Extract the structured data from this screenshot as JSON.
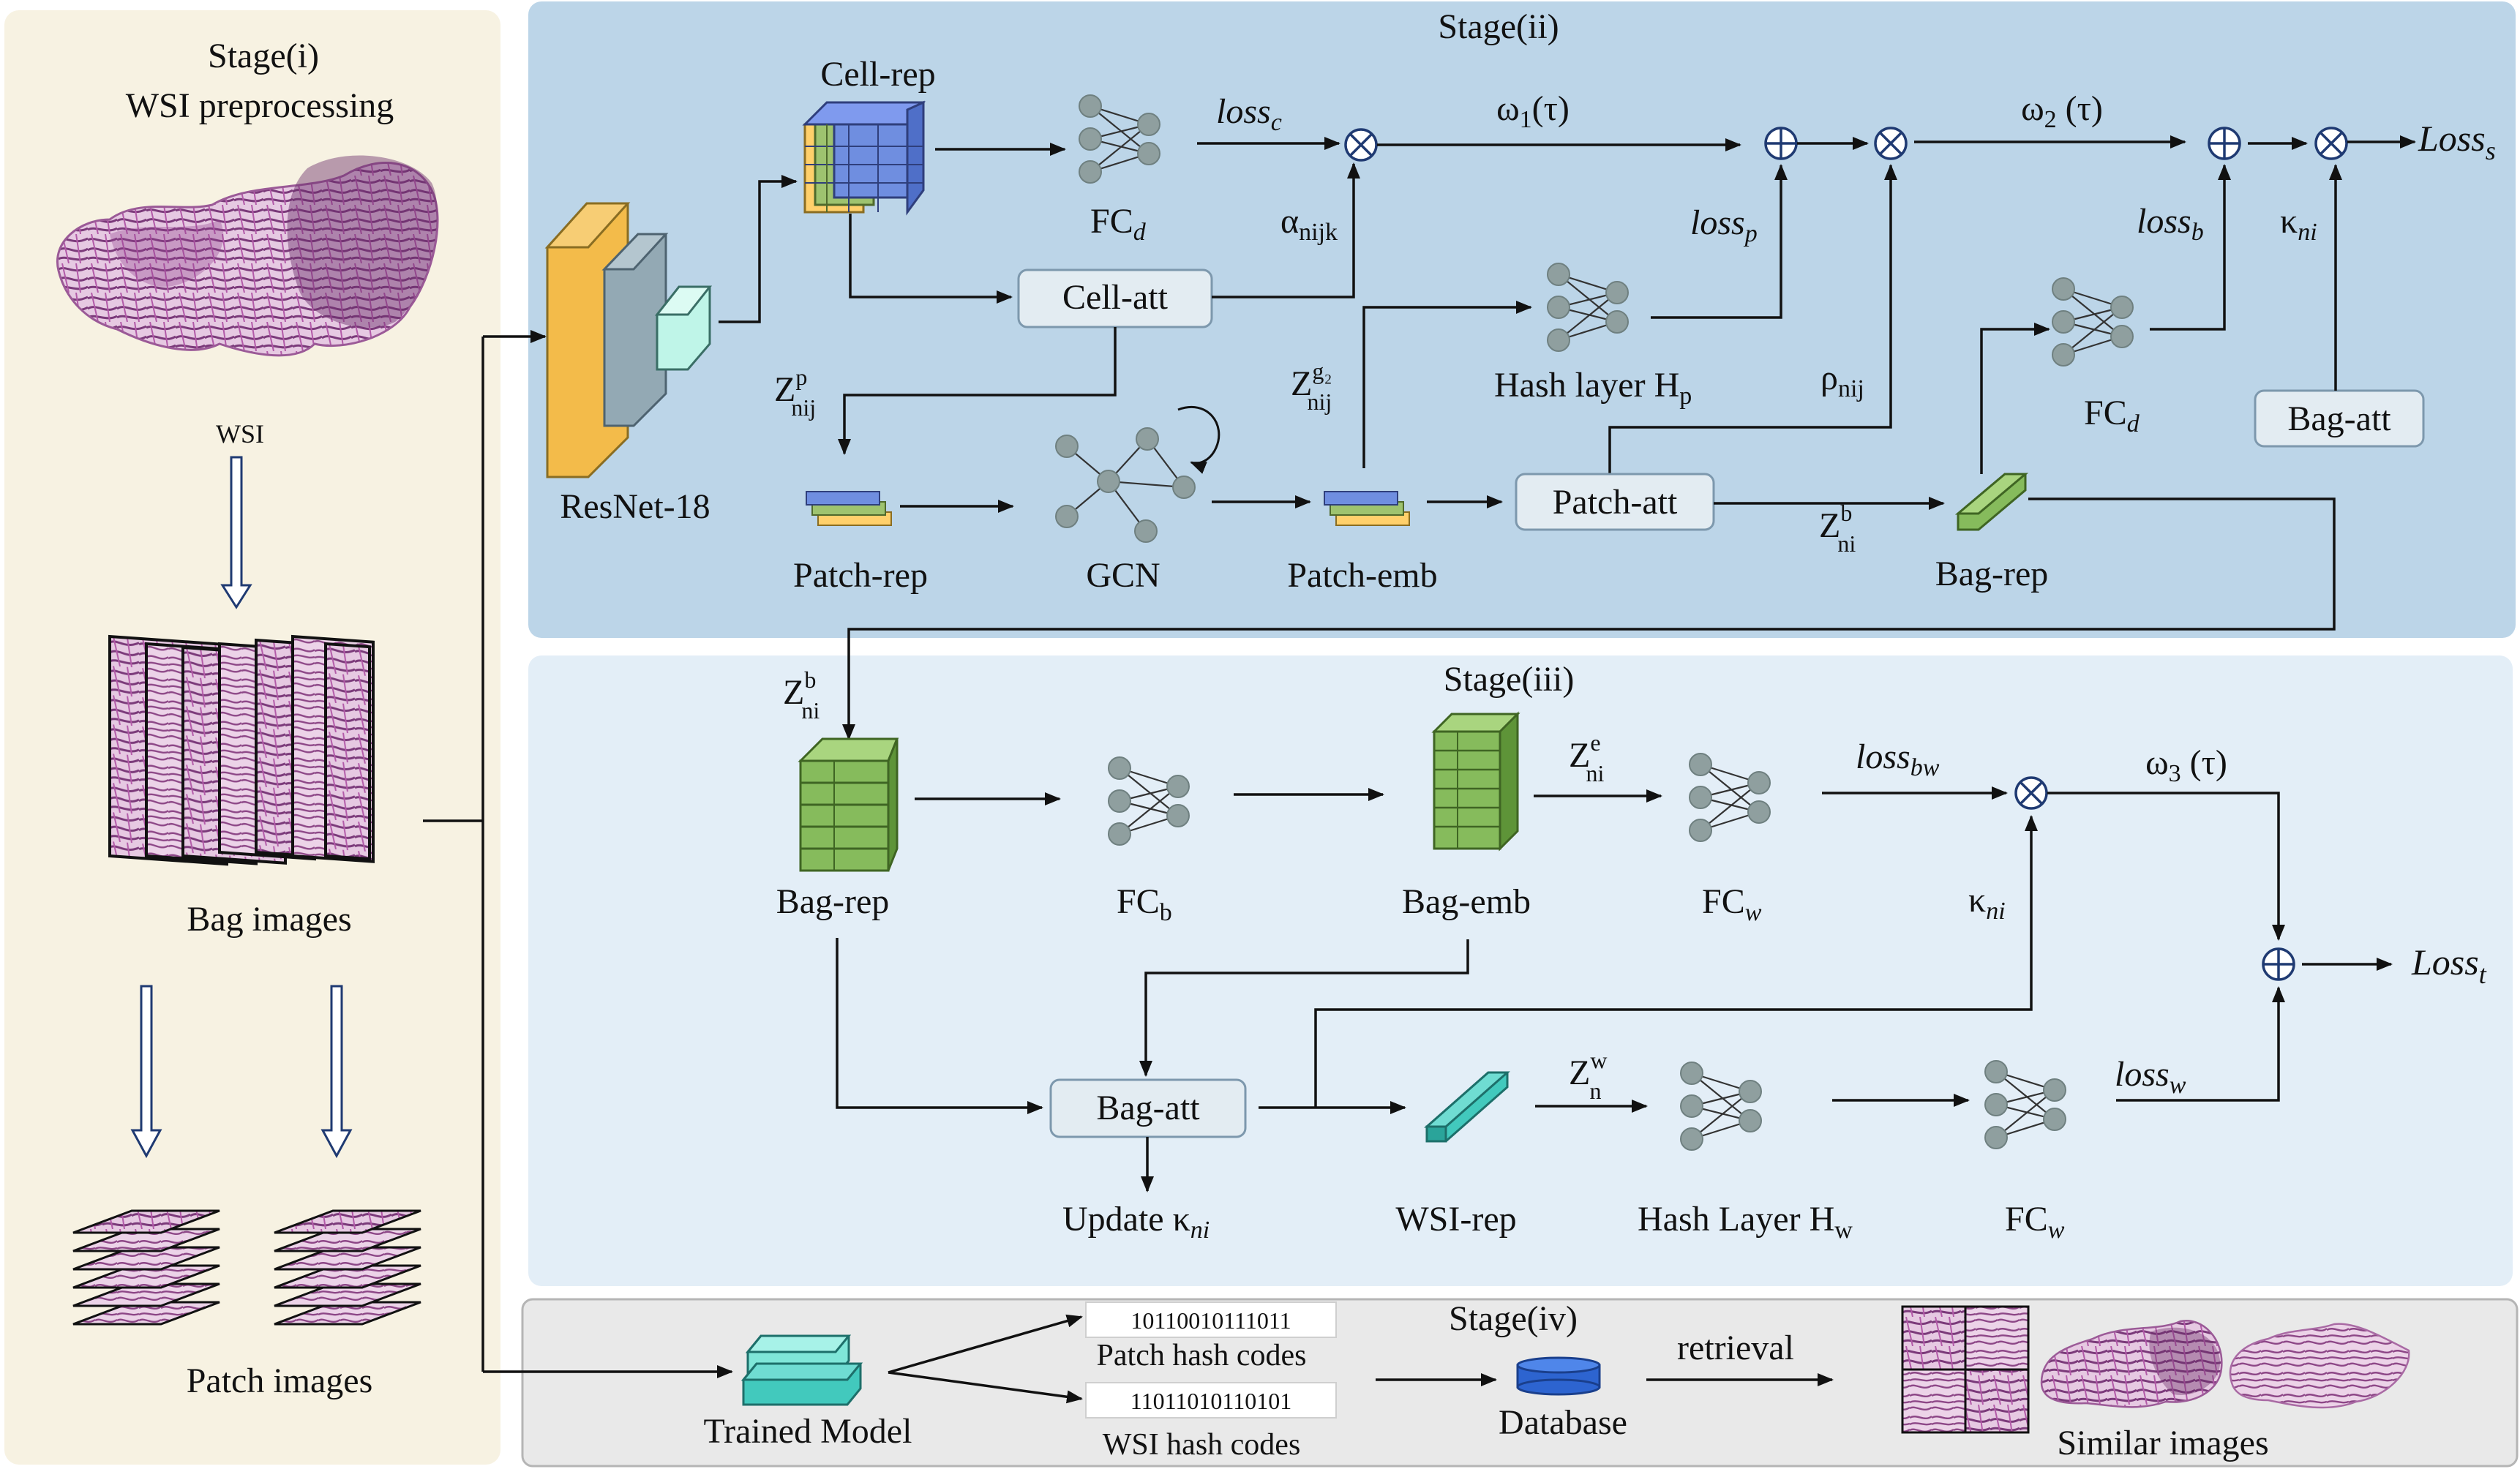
{
  "stages": {
    "s1_title": "Stage(i)",
    "s1_sub": "WSI preprocessing",
    "s2": "Stage(ii)",
    "s3": "Stage(iii)",
    "s4": "Stage(iv)"
  },
  "stage1": {
    "wsi": "WSI",
    "bag_images": "Bag images",
    "patch_images": "Patch images"
  },
  "stage2": {
    "cell_rep": "Cell-rep",
    "fc": "FC",
    "fc_sub": "d",
    "loss_c": "loss",
    "loss_c_sub": "c",
    "omega1": "ω",
    "omega1_sub": "1",
    "omega1_arg": "(τ)",
    "omega2": "ω",
    "omega2_sub": "2",
    "omega2_arg": " (τ)",
    "loss_s": "Loss",
    "loss_s_sub": "s",
    "alpha": "α",
    "alpha_sub": "nijk",
    "loss_p": "loss",
    "loss_p_sub": "p",
    "loss_b": "loss",
    "loss_b_sub": "b",
    "kappa": "κ",
    "kappa_sub": "ni",
    "cell_att": "Cell-att",
    "resnet": "ResNet-18",
    "z_p": "Z",
    "z_p_sup": "p",
    "z_p_sub": "nij",
    "z_g": "Z",
    "z_g_sup": "g₂",
    "z_g_sub": "nij",
    "hash_p": "Hash layer H",
    "hash_p_sub": "p",
    "rho": "ρ",
    "rho_sub": "nij",
    "fc2": "FC",
    "fc2_sub": "d",
    "bag_att": "Bag-att",
    "patch_rep": "Patch-rep",
    "gcn": "GCN",
    "patch_emb": "Patch-emb",
    "patch_att": "Patch-att",
    "z_b": "Z",
    "z_b_sup": "b",
    "z_b_sub": "ni",
    "bag_rep": "Bag-rep"
  },
  "stage3": {
    "z_b": "Z",
    "z_b_sup": "b",
    "z_b_sub": "ni",
    "bag_rep": "Bag-rep",
    "fc_b": "FC",
    "fc_b_sub": "b",
    "bag_emb": "Bag-emb",
    "z_e": "Z",
    "z_e_sup": "e",
    "z_e_sub": "ni",
    "fc_w": "FC",
    "fc_w_sub": "w",
    "loss_bw": "loss",
    "loss_bw_sub": "bw",
    "omega3": "ω",
    "omega3_sub": "3",
    "omega3_arg": " (τ)",
    "kappa": "κ",
    "kappa_sub": "ni",
    "loss_t": "Loss",
    "loss_t_sub": "t",
    "bag_att": "Bag-att",
    "z_w": "Z",
    "z_w_sup": "w",
    "z_w_sub": "n",
    "loss_w": "loss",
    "loss_w_sub": "w",
    "update": "Update κ",
    "update_sub": "ni",
    "wsi_rep": "WSI-rep",
    "hash_w": "Hash Layer H",
    "hash_w_sub": "w",
    "fc_w2": "FC",
    "fc_w2_sub": "w"
  },
  "stage4": {
    "trained_model": "Trained Model",
    "patch_code": "10110010111011",
    "patch_codes_label": "Patch hash codes",
    "wsi_code": "11011010110101",
    "wsi_codes_label": "WSI hash codes",
    "database": "Database",
    "retrieval": "retrieval",
    "similar": "Similar images"
  },
  "colors": {
    "stage1_bg": "#f7f2e2",
    "stage2_bg": "#bcd5e8",
    "stage3_bg": "#e3eef7",
    "stage4_bg": "#e9e9e9",
    "resnet_orange": "#f3bb4a",
    "teal": "#42c9bd",
    "tissue": "#a05a9c"
  }
}
